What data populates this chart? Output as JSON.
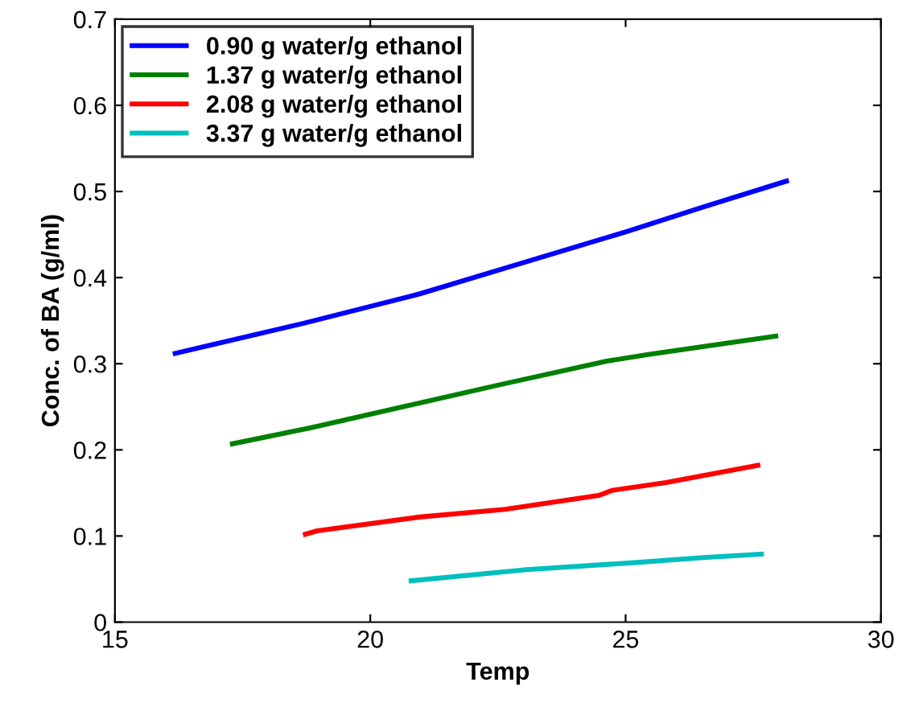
{
  "chart_data": {
    "type": "line",
    "xlabel": "Temp",
    "ylabel": "Conc. of BA (g/ml)",
    "xlim": [
      15,
      30
    ],
    "xticks": [
      15,
      20,
      25,
      30
    ],
    "ylim": [
      0,
      0.7
    ],
    "yticks": [
      0,
      0.1,
      0.2,
      0.3,
      0.4,
      0.5,
      0.6,
      0.7
    ],
    "grid": false,
    "legend": "top left",
    "marker": "none",
    "line_style": "solid",
    "series": [
      {
        "name": "0.90 g water/g ethanol",
        "color": "#0000ff",
        "x": [
          16.18,
          18.7,
          20.96,
          22.64,
          25.0,
          26.52,
          28.15
        ],
        "values": [
          0.312,
          0.347,
          0.381,
          0.411,
          0.453,
          0.482,
          0.512
        ]
      },
      {
        "name": "1.37 g water/g ethanol",
        "color": "#008000",
        "x": [
          17.3,
          18.86,
          20.12,
          22.64,
          24.63,
          25.47,
          27.94
        ],
        "values": [
          0.207,
          0.226,
          0.243,
          0.277,
          0.303,
          0.311,
          0.332
        ]
      },
      {
        "name": "2.08 g water/g ethanol",
        "color": "#ff0000",
        "x": [
          18.73,
          18.96,
          20.96,
          22.64,
          24.47,
          24.74,
          25.79,
          27.59
        ],
        "values": [
          0.102,
          0.106,
          0.122,
          0.131,
          0.147,
          0.153,
          0.162,
          0.182
        ]
      },
      {
        "name": "3.37 g water/g ethanol",
        "color": "#00bfbf",
        "x": [
          20.8,
          23.06,
          25.16,
          26.52,
          27.66
        ],
        "values": [
          0.048,
          0.061,
          0.069,
          0.075,
          0.079
        ]
      }
    ]
  }
}
